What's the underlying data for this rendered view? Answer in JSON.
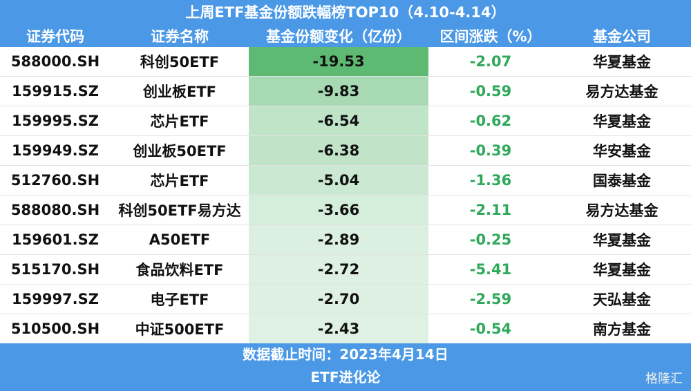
{
  "title": "上周ETF基金份额跌幅榜TOP10（4.10-4.14）",
  "table": {
    "headers": [
      "证券代码",
      "证券名称",
      "基金份额变化（亿份）",
      "区间涨跌（%）",
      "基金公司"
    ],
    "rows": [
      [
        "588000.SH",
        "科创50ETF",
        "-19.53",
        "-2.07",
        "华夏基金"
      ],
      [
        "159915.SZ",
        "创业板ETF",
        "-9.83",
        "-0.59",
        "易方达基金"
      ],
      [
        "159995.SZ",
        "芯片ETF",
        "-6.54",
        "-0.62",
        "华夏基金"
      ],
      [
        "159949.SZ",
        "创业板50ETF",
        "-6.38",
        "-0.39",
        "华安基金"
      ],
      [
        "512760.SH",
        "芯片ETF",
        "-5.04",
        "-1.36",
        "国泰基金"
      ],
      [
        "588080.SH",
        "科创50ETF易方达",
        "-3.66",
        "-2.11",
        "易方达基金"
      ],
      [
        "159601.SZ",
        "A50ETF",
        "-2.89",
        "-0.25",
        "华夏基金"
      ],
      [
        "515170.SH",
        "食品饮料ETF",
        "-2.72",
        "-5.41",
        "华夏基金"
      ],
      [
        "159997.SZ",
        "电子ETF",
        "-2.70",
        "-2.59",
        "天弘基金"
      ],
      [
        "510500.SH",
        "中证500ETF",
        "-2.43",
        "-0.54",
        "南方基金"
      ]
    ]
  },
  "footer": {
    "date": "数据截止时间：2023年4月14日",
    "source": "ETF进化论"
  },
  "watermark": "格隆汇"
}
